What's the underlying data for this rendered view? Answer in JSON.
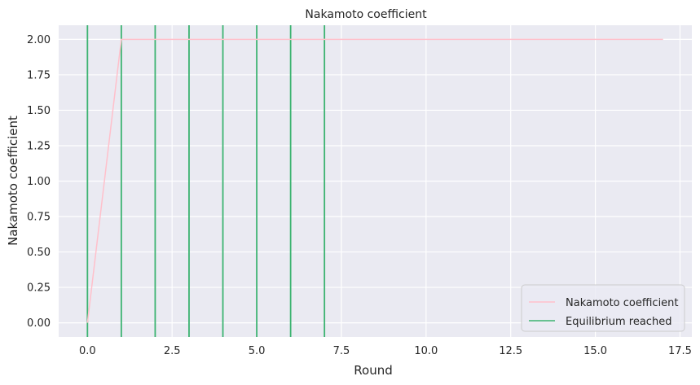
{
  "chart_data": {
    "type": "line",
    "title": "Nakamoto coefficient",
    "xlabel": "Round",
    "ylabel": "Nakamoto coefficient",
    "xlim": [
      -0.85,
      17.85
    ],
    "ylim": [
      -0.1,
      2.1
    ],
    "x_ticks": [
      0.0,
      2.5,
      5.0,
      7.5,
      10.0,
      12.5,
      15.0,
      17.5
    ],
    "x_tick_labels": [
      "0.0",
      "2.5",
      "5.0",
      "7.5",
      "10.0",
      "12.5",
      "15.0",
      "17.5"
    ],
    "y_ticks": [
      0.0,
      0.25,
      0.5,
      0.75,
      1.0,
      1.25,
      1.5,
      1.75,
      2.0
    ],
    "y_tick_labels": [
      "0.00",
      "0.25",
      "0.50",
      "0.75",
      "1.00",
      "1.25",
      "1.50",
      "1.75",
      "2.00"
    ],
    "grid": true,
    "legend_position": "lower-right",
    "series": [
      {
        "name": "Nakamoto coefficient",
        "color": "#ffc0cb",
        "x": [
          0,
          1,
          2,
          3,
          4,
          5,
          6,
          7,
          8,
          9,
          10,
          11,
          12,
          13,
          14,
          15,
          16,
          17
        ],
        "y": [
          0,
          2,
          2,
          2,
          2,
          2,
          2,
          2,
          2,
          2,
          2,
          2,
          2,
          2,
          2,
          2,
          2,
          2
        ]
      }
    ],
    "vlines": {
      "name": "Equilibrium reached",
      "color": "#3cb371",
      "x": [
        0,
        1,
        2,
        3,
        4,
        5,
        6,
        7
      ]
    },
    "background_color": "#eaeaf2",
    "grid_color": "#ffffff"
  }
}
